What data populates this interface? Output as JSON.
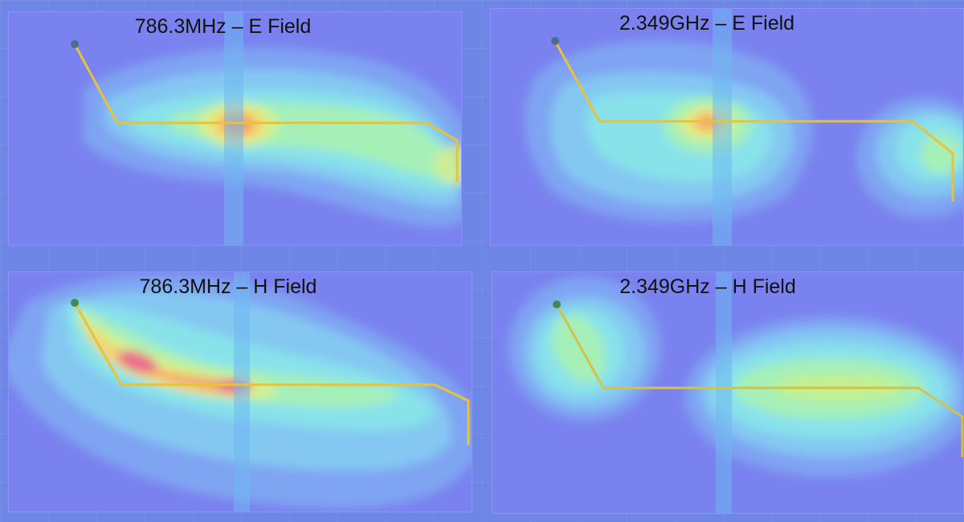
{
  "panels": [
    {
      "id": "e-786",
      "title": "786.3MHz – E Field"
    },
    {
      "id": "e-2349",
      "title": "2.349GHz – E Field"
    },
    {
      "id": "h-786",
      "title": "786.3MHz – H Field"
    },
    {
      "id": "h-2349",
      "title": "2.349GHz – H Field"
    }
  ],
  "colormap": {
    "low": "#7a82ef",
    "steps": [
      "#7fa4f2",
      "#84c8f2",
      "#88e2ea",
      "#a6f0b8",
      "#d7f08a",
      "#f7d36c",
      "#f59a6e",
      "#e96a8c"
    ]
  },
  "trace_color": "#e8c23a",
  "feed_color": "#4d6e8a"
}
